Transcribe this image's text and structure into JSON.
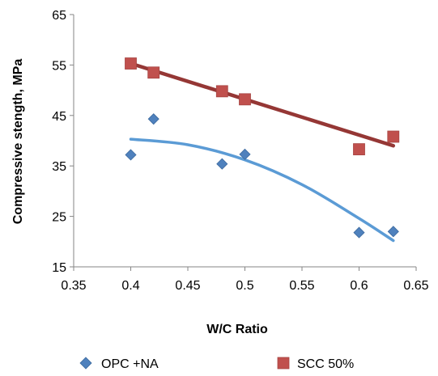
{
  "chart_data": {
    "type": "scatter",
    "title": "",
    "xlabel": "W/C Ratio",
    "ylabel": "Compressive stength, MPa",
    "xlim": [
      0.35,
      0.65
    ],
    "ylim": [
      15,
      65
    ],
    "xticks": [
      "0.35",
      "0.4",
      "0.45",
      "0.5",
      "0.55",
      "0.6",
      "0.65"
    ],
    "yticks": [
      "15",
      "25",
      "35",
      "45",
      "55",
      "65"
    ],
    "grid": false,
    "legend_position": "bottom",
    "series": [
      {
        "name": "OPC +NA",
        "marker": "diamond",
        "color": "#4f81bd",
        "trendline_color": "#5b9bd5",
        "x": [
          0.4,
          0.42,
          0.48,
          0.5,
          0.6,
          0.63
        ],
        "y": [
          37.2,
          44.3,
          35.4,
          37.3,
          21.8,
          22.0
        ],
        "trendline": {
          "type": "polynomial",
          "x": [
            0.4,
            0.45,
            0.5,
            0.55,
            0.6,
            0.63
          ],
          "y": [
            40.3,
            39.2,
            36.2,
            31.3,
            24.6,
            20.2
          ]
        }
      },
      {
        "name": "SCC 50%",
        "marker": "square",
        "color": "#c0504d",
        "trendline_color": "#953735",
        "x": [
          0.4,
          0.42,
          0.48,
          0.5,
          0.6,
          0.63
        ],
        "y": [
          55.3,
          53.5,
          49.8,
          48.2,
          38.3,
          40.8
        ],
        "trendline": {
          "type": "linear",
          "x": [
            0.4,
            0.63
          ],
          "y": [
            55.3,
            39.0
          ]
        }
      }
    ]
  }
}
